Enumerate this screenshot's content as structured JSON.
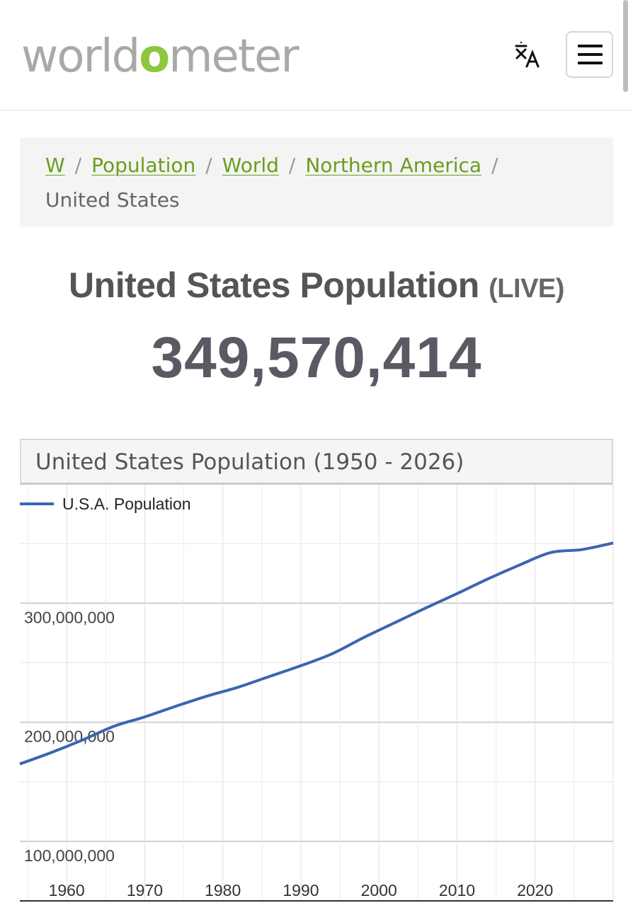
{
  "header": {
    "logo_text": "worldometer",
    "logo_prefix": "world",
    "logo_o": "o",
    "logo_suffix": "meter",
    "logo_accent_color": "#8dc63f",
    "translate_icon": "translate-icon",
    "menu_icon": "hamburger-menu-icon"
  },
  "breadcrumb": {
    "items": [
      "W",
      "Population",
      "World",
      "Northern America"
    ],
    "separator": "/",
    "current": "United States"
  },
  "main": {
    "title": "United States Population",
    "title_suffix": "(LIVE)",
    "live_count": "349,570,414"
  },
  "chart": {
    "header_title": "United States Population (1950 - 2026)"
  },
  "chart_data": {
    "type": "line",
    "title": "United States Population (1950 - 2026)",
    "legend_position": "top-left",
    "line_color": "#3c64b1",
    "grid": true,
    "xlim": [
      1954,
      2030
    ],
    "ylim": [
      50000000,
      400000000
    ],
    "x_ticks": [
      1960,
      1970,
      1980,
      1990,
      2000,
      2010,
      2020
    ],
    "x_tick_labels": [
      "1960",
      "1970",
      "1980",
      "1990",
      "2000",
      "2010",
      "2020"
    ],
    "y_ticks": [
      100000000,
      200000000,
      300000000
    ],
    "y_tick_labels": [
      "100,000,000",
      "200,000,000",
      "300,000,000"
    ],
    "series": [
      {
        "name": "U.S.A. Population",
        "x": [
          1954,
          1958,
          1962,
          1966,
          1970,
          1974,
          1978,
          1982,
          1986,
          1990,
          1994,
          1998,
          2002,
          2006,
          2010,
          2014,
          2018,
          2022,
          2026,
          2030
        ],
        "y": [
          165000000,
          174500000,
          185000000,
          196500000,
          204500000,
          213500000,
          222000000,
          229500000,
          238500000,
          247500000,
          257500000,
          271000000,
          283500000,
          296000000,
          308000000,
          320500000,
          332000000,
          342500000,
          345000000,
          350500000
        ]
      }
    ]
  }
}
